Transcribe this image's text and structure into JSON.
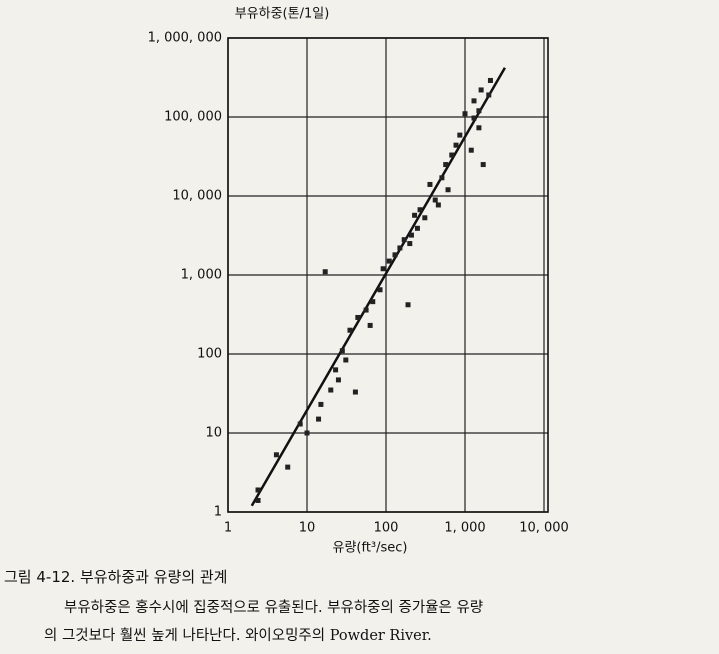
{
  "chart_data": {
    "type": "scatter",
    "y_axis_label": "부유하중(톤/1일)",
    "x_axis_label": "유량(ft³/sec)",
    "log_x": true,
    "log_y": true,
    "grid": true,
    "color": "#222222",
    "xlim": [
      1,
      10000
    ],
    "ylim": [
      1,
      1000000
    ],
    "xticks": [
      1,
      10,
      100,
      {
        "value": 1000,
        "label": "1, 000"
      },
      {
        "value": 10000,
        "label": "10, 000"
      }
    ],
    "yticks": [
      1,
      10,
      100,
      {
        "value": 1000,
        "label": "1, 000"
      },
      {
        "value": 10000,
        "label": "10, 000"
      },
      {
        "value": 100000,
        "label": "100, 000"
      },
      {
        "value": 1000000,
        "label": "1, 000, 000"
      }
    ],
    "x": [
      2.4,
      2.4,
      4.1,
      5.7,
      8.2,
      10,
      14,
      17,
      15,
      20,
      23,
      25,
      28,
      31,
      35,
      41,
      44,
      56,
      63,
      68,
      84,
      92,
      110,
      130,
      150,
      170,
      190,
      200,
      210,
      230,
      250,
      270,
      310,
      360,
      420,
      460,
      510,
      570,
      610,
      680,
      770,
      860,
      1000,
      1200,
      1500,
      1300,
      1500,
      1300,
      1600,
      2000,
      2100,
      1700
    ],
    "y": [
      1.9,
      1.4,
      5.3,
      3.7,
      13,
      10,
      15,
      1100,
      23,
      35,
      63,
      47,
      110,
      84,
      200,
      33,
      290,
      360,
      230,
      460,
      650,
      1200,
      1500,
      1800,
      2200,
      2800,
      420,
      2500,
      3200,
      5700,
      3900,
      6700,
      5300,
      14000,
      8900,
      7700,
      17000,
      25000,
      12000,
      33000,
      44000,
      59000,
      110000,
      38000,
      73000,
      97000,
      120000,
      160000,
      220000,
      190000,
      290000,
      25000
    ],
    "fit_line": {
      "x": [
        2,
        3200
      ],
      "y": [
        1.2,
        420000
      ]
    }
  },
  "caption": {
    "title": "그림 4-12. 부유하중과 유량의 관계",
    "lines": [
      "부유하중은 홍수시에 집중적으로 유출된다. 부유하중의 증가율은 유량",
      "의 그것보다 훨씬 높게 나타난다. 와이오밍주의 Powder River."
    ]
  }
}
